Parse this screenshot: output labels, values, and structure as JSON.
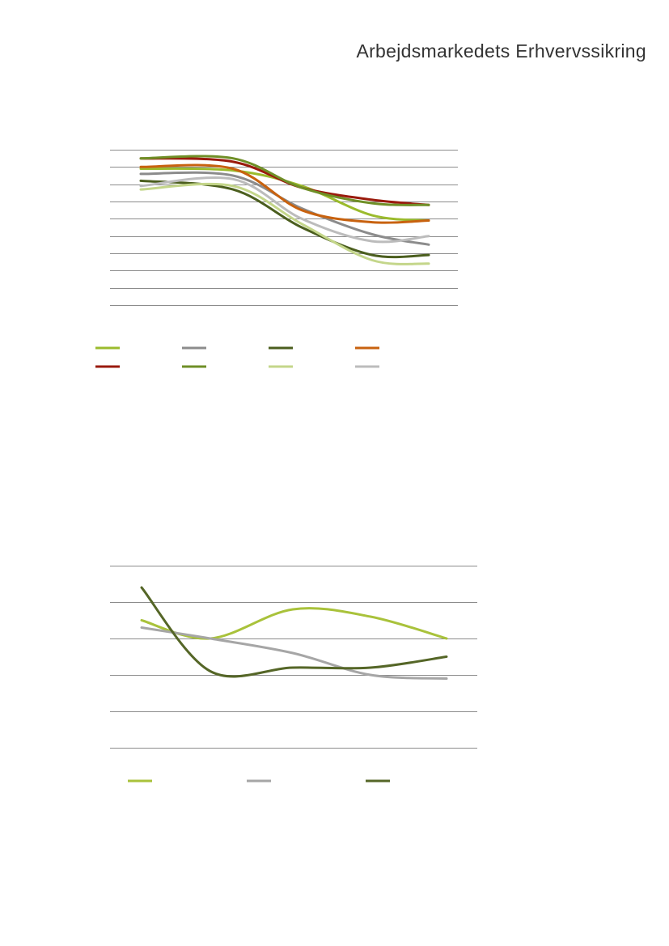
{
  "header": {
    "title": "Arbejdsmarkedets Erhvervssikring"
  },
  "chart_data": [
    {
      "type": "line",
      "title": "",
      "xlabel": "",
      "ylabel": "",
      "x": [
        1,
        2,
        3,
        4,
        5
      ],
      "ylim": [
        0,
        9
      ],
      "grid": true,
      "legend": "bottom",
      "series": [
        {
          "color": "#9bbb2d",
          "values": [
            7.9,
            7.8,
            6.9,
            5.2,
            4.9
          ]
        },
        {
          "color": "#8c8c8c",
          "values": [
            7.6,
            7.5,
            5.6,
            4.1,
            3.5
          ]
        },
        {
          "color": "#4b5e1e",
          "values": [
            7.2,
            6.7,
            4.5,
            2.9,
            2.9
          ]
        },
        {
          "color": "#c8620f",
          "values": [
            8.0,
            7.9,
            5.5,
            4.8,
            4.9
          ]
        },
        {
          "color": "#9a1a0c",
          "values": [
            8.5,
            8.3,
            6.8,
            6.1,
            5.8
          ]
        },
        {
          "color": "#6f8f27",
          "values": [
            8.5,
            8.5,
            6.8,
            5.9,
            5.8
          ]
        },
        {
          "color": "#c4d68a",
          "values": [
            6.7,
            6.9,
            4.7,
            2.6,
            2.4
          ]
        },
        {
          "color": "#bcbcbc",
          "values": [
            6.9,
            7.3,
            5.0,
            3.7,
            4.0
          ]
        }
      ]
    },
    {
      "type": "line",
      "title": "",
      "xlabel": "",
      "ylabel": "",
      "x": [
        1,
        2,
        3,
        4,
        5
      ],
      "ylim": [
        0,
        5
      ],
      "grid": true,
      "legend": "bottom",
      "series": [
        {
          "color": "#a9c23b",
          "values": [
            3.5,
            3.0,
            3.8,
            3.6,
            3.0
          ]
        },
        {
          "color": "#a6a6a6",
          "values": [
            3.3,
            3.0,
            2.6,
            2.0,
            1.9
          ]
        },
        {
          "color": "#556627",
          "values": [
            4.4,
            2.1,
            2.2,
            2.2,
            2.5
          ]
        }
      ]
    }
  ]
}
